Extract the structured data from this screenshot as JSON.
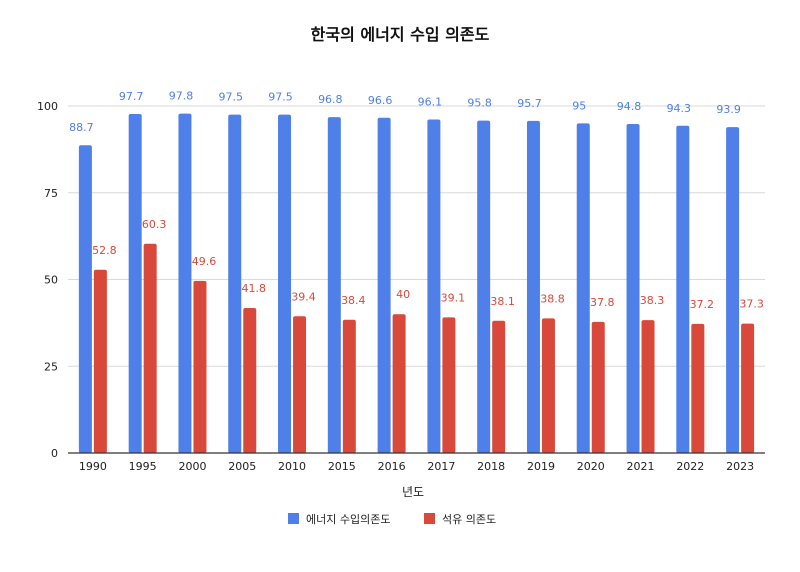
{
  "chart_data": {
    "type": "bar",
    "title": "한국의 에너지 수입 의존도",
    "xlabel": "년도",
    "ylabel": "",
    "ylim": [
      0,
      100
    ],
    "yticks": [
      0,
      25,
      50,
      75,
      100
    ],
    "grid": true,
    "legend_position": "bottom",
    "categories": [
      "1990",
      "1995",
      "2000",
      "2005",
      "2010",
      "2015",
      "2016",
      "2017",
      "2018",
      "2019",
      "2020",
      "2021",
      "2022",
      "2023"
    ],
    "series": [
      {
        "name": "에너지 수입의존도",
        "color": "#4f7fe8",
        "values": [
          88.7,
          97.7,
          97.8,
          97.5,
          97.5,
          96.8,
          96.6,
          96.1,
          95.8,
          95.7,
          95,
          94.8,
          94.3,
          93.9
        ]
      },
      {
        "name": "석유 의존도",
        "color": "#d9493b",
        "values": [
          52.8,
          60.3,
          49.6,
          41.8,
          39.4,
          38.4,
          40,
          39.1,
          38.1,
          38.8,
          37.8,
          38.3,
          37.2,
          37.3
        ]
      }
    ]
  }
}
